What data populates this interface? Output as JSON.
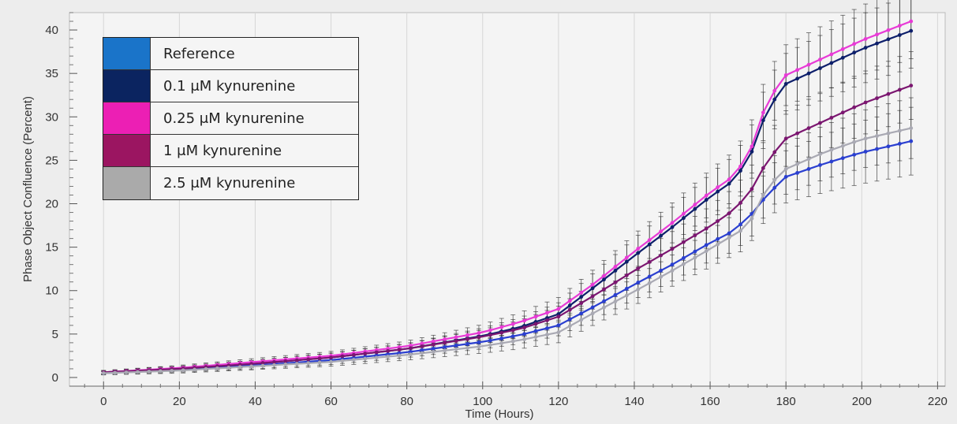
{
  "chart_data": {
    "type": "line",
    "title": "",
    "xlabel": "Time (Hours)",
    "ylabel": "Phase Object Confluence (Percent)",
    "xlim": [
      -9,
      222
    ],
    "ylim": [
      -1,
      42
    ],
    "x_ticks": [
      0,
      20,
      40,
      60,
      80,
      100,
      120,
      140,
      160,
      180,
      200,
      220
    ],
    "y_ticks": [
      0,
      5,
      10,
      15,
      20,
      25,
      30,
      35,
      40
    ],
    "grid": true,
    "legend_position": "top-left",
    "x": [
      0,
      20,
      40,
      60,
      80,
      100,
      110,
      120,
      130,
      140,
      150,
      160,
      165,
      170,
      175,
      180,
      190,
      200,
      213
    ],
    "series": [
      {
        "name": "Reference",
        "color": "#2a3fd0",
        "values": [
          0.5,
          0.9,
          1.4,
          2.0,
          2.9,
          4.1,
          4.9,
          6.0,
          8.3,
          10.7,
          13.0,
          15.5,
          16.6,
          18.3,
          21.0,
          23.1,
          24.6,
          25.9,
          27.2
        ],
        "error": [
          0.2,
          0.3,
          0.4,
          0.5,
          0.6,
          0.8,
          1.0,
          1.2,
          1.5,
          1.7,
          1.9,
          2.1,
          2.3,
          2.5,
          2.8,
          3.0,
          3.3,
          3.6,
          3.9
        ]
      },
      {
        "name": "0.1 μM kynurenine",
        "color": "#0d1f6b",
        "values": [
          0.6,
          1.0,
          1.6,
          2.3,
          3.3,
          4.8,
          5.8,
          7.3,
          10.6,
          14.0,
          17.3,
          20.8,
          22.3,
          24.8,
          30.8,
          33.8,
          35.8,
          37.8,
          39.9
        ],
        "error": [
          0.2,
          0.3,
          0.4,
          0.5,
          0.6,
          0.9,
          1.1,
          1.3,
          1.7,
          2.0,
          2.3,
          2.6,
          2.8,
          3.0,
          3.3,
          3.5,
          3.8,
          4.0,
          4.3
        ]
      },
      {
        "name": "0.25 μM kynurenine",
        "color": "#e83ad6",
        "values": [
          0.6,
          1.1,
          1.8,
          2.5,
          3.6,
          5.2,
          6.4,
          7.9,
          11.0,
          14.5,
          17.8,
          21.3,
          22.8,
          25.3,
          31.8,
          34.8,
          36.8,
          38.8,
          41.0
        ],
        "error": [
          0.2,
          0.3,
          0.4,
          0.5,
          0.6,
          0.9,
          1.1,
          1.3,
          1.7,
          2.0,
          2.3,
          2.6,
          2.8,
          3.0,
          3.3,
          3.5,
          3.8,
          4.0,
          4.3
        ]
      },
      {
        "name": "1 μM kynurenine",
        "color": "#7b1670",
        "values": [
          0.6,
          1.0,
          1.6,
          2.3,
          3.3,
          4.7,
          5.6,
          7.0,
          9.6,
          12.3,
          14.8,
          17.4,
          18.9,
          20.9,
          24.9,
          27.5,
          29.5,
          31.5,
          33.6
        ],
        "error": [
          0.2,
          0.3,
          0.4,
          0.5,
          0.6,
          0.8,
          1.0,
          1.2,
          1.5,
          1.8,
          2.0,
          2.3,
          2.5,
          2.7,
          3.0,
          3.2,
          3.4,
          3.6,
          3.9
        ]
      },
      {
        "name": "2.5 μM kynurenine",
        "color": "#a9a9b3",
        "values": [
          0.5,
          0.8,
          1.3,
          1.8,
          2.6,
          3.6,
          4.3,
          5.2,
          7.6,
          9.9,
          12.3,
          14.8,
          16.1,
          17.4,
          21.9,
          24.0,
          25.9,
          27.4,
          28.7
        ],
        "error": [
          0.2,
          0.3,
          0.4,
          0.5,
          0.6,
          0.8,
          1.0,
          1.2,
          1.4,
          1.6,
          1.8,
          2.1,
          2.3,
          2.5,
          2.7,
          2.9,
          3.1,
          3.3,
          3.5
        ]
      }
    ]
  },
  "legend": {
    "items": [
      {
        "label": "Reference",
        "swatch": "#1a74c9"
      },
      {
        "label": "0.1 μM kynurenine",
        "swatch": "#0b2460"
      },
      {
        "label": "0.25 μM kynurenine",
        "swatch": "#ec1fb4"
      },
      {
        "label": "1 μM kynurenine",
        "swatch": "#9b1561"
      },
      {
        "label": "2.5 μM kynurenine",
        "swatch": "#aaaaaa"
      }
    ]
  },
  "colors": {
    "background": "#ededed",
    "plot_background": "#f4f4f4",
    "grid": "#d6d6d6",
    "error_bar": "#222222"
  }
}
